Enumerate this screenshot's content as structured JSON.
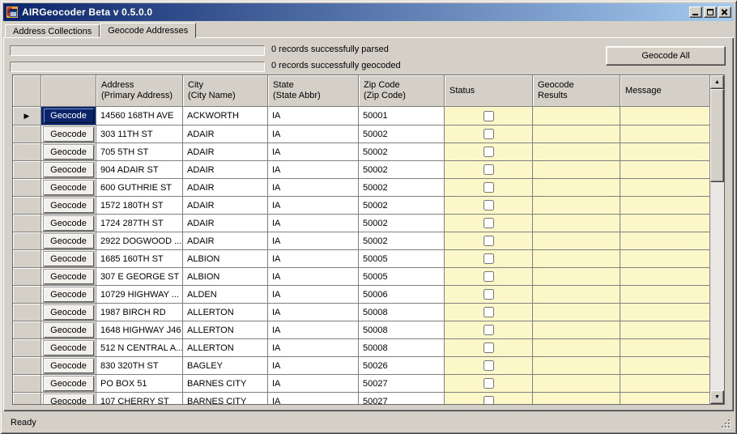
{
  "window": {
    "title": "AIRGeocoder Beta v 0.5.0.0"
  },
  "titlebar": {
    "icons": {
      "minimize": "_",
      "maximize": "□",
      "close": "×"
    }
  },
  "tabs": [
    {
      "label": "Address Collections",
      "selected": false
    },
    {
      "label": "Geocode Addresses",
      "selected": true
    }
  ],
  "progress": {
    "parsed_label": "0 records successfully parsed",
    "geocoded_label": "0 records successfully geocoded",
    "parsed_percent": 0,
    "geocoded_percent": 0
  },
  "toolbar": {
    "geocode_all_label": "Geocode All"
  },
  "grid": {
    "button_label": "Geocode",
    "columns": [
      {
        "id": "row_header",
        "label": "",
        "sublabel": ""
      },
      {
        "id": "geocode_button",
        "label": "",
        "sublabel": ""
      },
      {
        "id": "address",
        "label": "Address",
        "sublabel": "(Primary Address)"
      },
      {
        "id": "city",
        "label": "City",
        "sublabel": "(City Name)"
      },
      {
        "id": "state",
        "label": "State",
        "sublabel": "(State Abbr)"
      },
      {
        "id": "zip",
        "label": "Zip Code",
        "sublabel": "(Zip Code)"
      },
      {
        "id": "status",
        "label": "Status",
        "sublabel": ""
      },
      {
        "id": "geocode_results",
        "label": "Geocode",
        "sublabel": "Results"
      },
      {
        "id": "message",
        "label": "Message",
        "sublabel": ""
      }
    ],
    "rows": [
      {
        "address": "14560 168TH AVE",
        "city": "ACKWORTH",
        "state": "IA",
        "zip": "50001",
        "status_checked": false,
        "geocode_results": "",
        "message": "",
        "current": true,
        "selected": true
      },
      {
        "address": "303 11TH ST",
        "city": "ADAIR",
        "state": "IA",
        "zip": "50002",
        "status_checked": false,
        "geocode_results": "",
        "message": "",
        "current": false,
        "selected": false
      },
      {
        "address": "705 5TH ST",
        "city": "ADAIR",
        "state": "IA",
        "zip": "50002",
        "status_checked": false,
        "geocode_results": "",
        "message": "",
        "current": false,
        "selected": false
      },
      {
        "address": "904 ADAIR ST",
        "city": "ADAIR",
        "state": "IA",
        "zip": "50002",
        "status_checked": false,
        "geocode_results": "",
        "message": "",
        "current": false,
        "selected": false
      },
      {
        "address": "600 GUTHRIE ST",
        "city": "ADAIR",
        "state": "IA",
        "zip": "50002",
        "status_checked": false,
        "geocode_results": "",
        "message": "",
        "current": false,
        "selected": false
      },
      {
        "address": "1572 180TH ST",
        "city": "ADAIR",
        "state": "IA",
        "zip": "50002",
        "status_checked": false,
        "geocode_results": "",
        "message": "",
        "current": false,
        "selected": false
      },
      {
        "address": "1724 287TH ST",
        "city": "ADAIR",
        "state": "IA",
        "zip": "50002",
        "status_checked": false,
        "geocode_results": "",
        "message": "",
        "current": false,
        "selected": false
      },
      {
        "address": "2922 DOGWOOD ...",
        "city": "ADAIR",
        "state": "IA",
        "zip": "50002",
        "status_checked": false,
        "geocode_results": "",
        "message": "",
        "current": false,
        "selected": false
      },
      {
        "address": "1685 160TH ST",
        "city": "ALBION",
        "state": "IA",
        "zip": "50005",
        "status_checked": false,
        "geocode_results": "",
        "message": "",
        "current": false,
        "selected": false
      },
      {
        "address": "307 E GEORGE ST",
        "city": "ALBION",
        "state": "IA",
        "zip": "50005",
        "status_checked": false,
        "geocode_results": "",
        "message": "",
        "current": false,
        "selected": false
      },
      {
        "address": "10729 HIGHWAY ...",
        "city": "ALDEN",
        "state": "IA",
        "zip": "50006",
        "status_checked": false,
        "geocode_results": "",
        "message": "",
        "current": false,
        "selected": false
      },
      {
        "address": "1987 BIRCH RD",
        "city": "ALLERTON",
        "state": "IA",
        "zip": "50008",
        "status_checked": false,
        "geocode_results": "",
        "message": "",
        "current": false,
        "selected": false
      },
      {
        "address": "1648 HIGHWAY J46",
        "city": "ALLERTON",
        "state": "IA",
        "zip": "50008",
        "status_checked": false,
        "geocode_results": "",
        "message": "",
        "current": false,
        "selected": false
      },
      {
        "address": "512 N CENTRAL A...",
        "city": "ALLERTON",
        "state": "IA",
        "zip": "50008",
        "status_checked": false,
        "geocode_results": "",
        "message": "",
        "current": false,
        "selected": false
      },
      {
        "address": "830 320TH ST",
        "city": "BAGLEY",
        "state": "IA",
        "zip": "50026",
        "status_checked": false,
        "geocode_results": "",
        "message": "",
        "current": false,
        "selected": false
      },
      {
        "address": "PO BOX 51",
        "city": "BARNES CITY",
        "state": "IA",
        "zip": "50027",
        "status_checked": false,
        "geocode_results": "",
        "message": "",
        "current": false,
        "selected": false
      },
      {
        "address": "107 CHERRY ST",
        "city": "BARNES CITY",
        "state": "IA",
        "zip": "50027",
        "status_checked": false,
        "geocode_results": "",
        "message": "",
        "current": false,
        "selected": false
      }
    ]
  },
  "scrollbar": {
    "up_icon": "▲",
    "down_icon": "▼"
  },
  "current_row_icon": "▶",
  "statusbar": {
    "text": "Ready"
  },
  "colors": {
    "titlebar_start": "#0a246a",
    "titlebar_end": "#a6caf0",
    "face": "#d4d0c8",
    "cell_yellow": "#fbf7c9",
    "selection": "#0a246a",
    "grid_line": "#808080"
  }
}
